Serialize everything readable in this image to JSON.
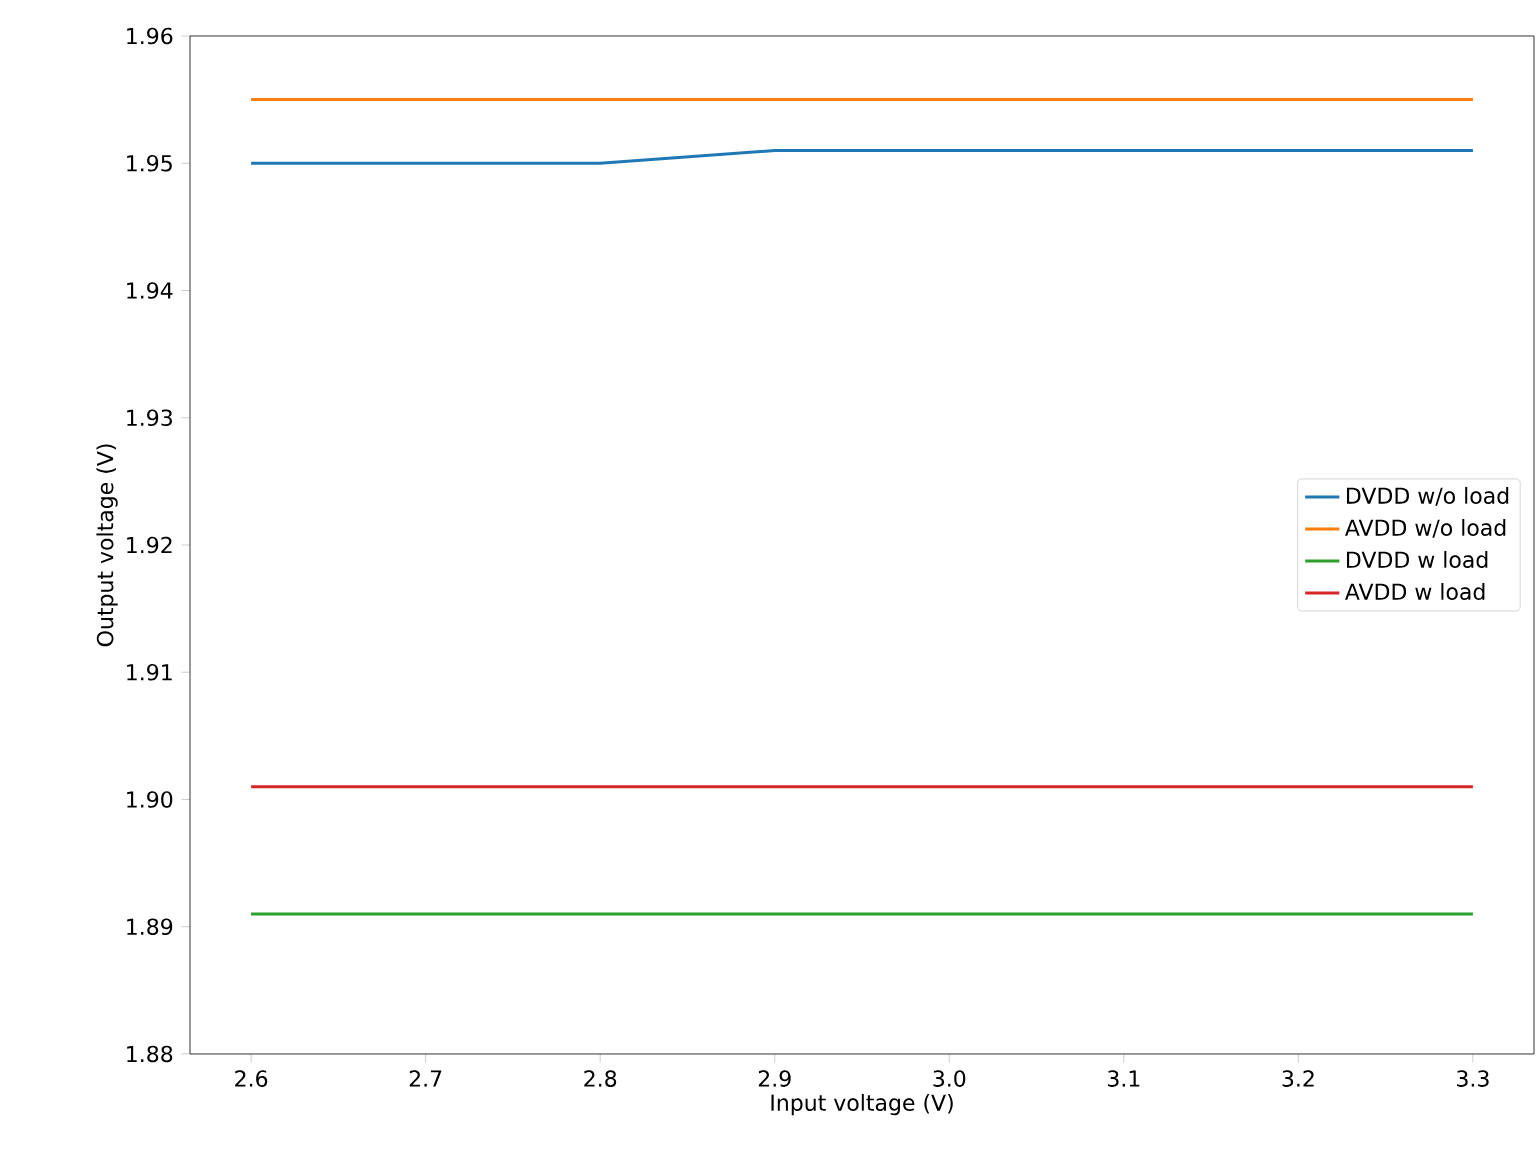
{
  "chart_data": {
    "type": "line",
    "xlabel": "Input voltage (V)",
    "ylabel": "Output voltage (V)",
    "x": [
      2.6,
      2.7,
      2.8,
      2.9,
      3.0,
      3.1,
      3.2,
      3.3
    ],
    "series": [
      {
        "name": "DVDD w/o load",
        "color": "#1f77b4",
        "values": [
          1.95,
          1.95,
          1.95,
          1.951,
          1.951,
          1.951,
          1.951,
          1.951
        ]
      },
      {
        "name": "AVDD w/o load",
        "color": "#ff7f0e",
        "values": [
          1.955,
          1.955,
          1.955,
          1.955,
          1.955,
          1.955,
          1.955,
          1.955
        ]
      },
      {
        "name": "DVDD w load",
        "color": "#2ca02c",
        "values": [
          1.891,
          1.891,
          1.891,
          1.891,
          1.891,
          1.891,
          1.891,
          1.891
        ]
      },
      {
        "name": "AVDD w load",
        "color": "#d62728",
        "values": [
          1.901,
          1.901,
          1.901,
          1.901,
          1.901,
          1.901,
          1.901,
          1.901
        ]
      }
    ],
    "xlim": [
      2.565,
      3.335
    ],
    "ylim": [
      1.88,
      1.96
    ],
    "xticks": [
      {
        "value": 2.6,
        "label": "2.6"
      },
      {
        "value": 2.7,
        "label": "2.7"
      },
      {
        "value": 2.8,
        "label": "2.8"
      },
      {
        "value": 2.9,
        "label": "2.9"
      },
      {
        "value": 3.0,
        "label": "3.0"
      },
      {
        "value": 3.1,
        "label": "3.1"
      },
      {
        "value": 3.2,
        "label": "3.2"
      },
      {
        "value": 3.3,
        "label": "3.3"
      }
    ],
    "yticks": [
      {
        "value": 1.88,
        "label": "1.88"
      },
      {
        "value": 1.89,
        "label": "1.89"
      },
      {
        "value": 1.9,
        "label": "1.90"
      },
      {
        "value": 1.91,
        "label": "1.91"
      },
      {
        "value": 1.92,
        "label": "1.92"
      },
      {
        "value": 1.93,
        "label": "1.93"
      },
      {
        "value": 1.94,
        "label": "1.94"
      },
      {
        "value": 1.95,
        "label": "1.95"
      },
      {
        "value": 1.96,
        "label": "1.96"
      }
    ],
    "legend": "right",
    "grid": false
  }
}
